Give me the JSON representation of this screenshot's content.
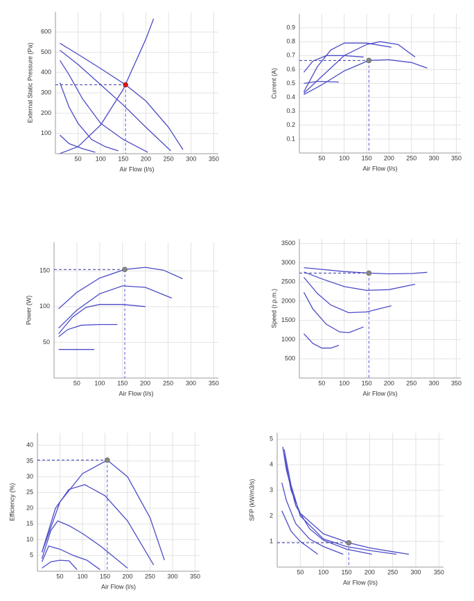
{
  "chart_data": [
    {
      "type": "line",
      "xlabel": "Air Flow (l/s)",
      "ylabel": "External Static Pressure (Pa)",
      "xlim": [
        0,
        360
      ],
      "ylim": [
        0,
        700
      ],
      "xticks": [
        50,
        100,
        150,
        200,
        250,
        300,
        350
      ],
      "yticks": [
        100,
        200,
        300,
        400,
        500,
        600
      ],
      "grid": true,
      "series": [
        {
          "color": "#4b4bc8",
          "x": [
            10,
            50,
            100,
            150,
            200,
            217
          ],
          "values": [
            1,
            35,
            142,
            318,
            566,
            666
          ]
        },
        {
          "color": "#4b4bc8",
          "x": [
            10,
            50,
            100,
            155,
            200,
            250,
            282
          ],
          "values": [
            545,
            490,
            420,
            340,
            260,
            130,
            20
          ]
        },
        {
          "color": "#4b4bc8",
          "x": [
            10,
            50,
            100,
            150,
            200,
            255
          ],
          "values": [
            510,
            440,
            340,
            240,
            130,
            14
          ]
        },
        {
          "color": "#4b4bc8",
          "x": [
            10,
            30,
            60,
            100,
            150,
            204
          ],
          "values": [
            460,
            390,
            270,
            150,
            70,
            7
          ]
        },
        {
          "color": "#4b4bc8",
          "x": [
            10,
            30,
            50,
            80,
            110,
            139
          ],
          "values": [
            350,
            230,
            150,
            70,
            35,
            14
          ]
        },
        {
          "color": "#4b4bc8",
          "x": [
            10,
            30,
            60,
            88
          ],
          "values": [
            92,
            50,
            25,
            7
          ]
        }
      ],
      "operating_point": {
        "x": 155,
        "y": 340,
        "color": "#dd1111"
      }
    },
    {
      "type": "line",
      "xlabel": "Air Flow (l/s)",
      "ylabel": "Current (A)",
      "xlim": [
        0,
        360
      ],
      "ylim": [
        0,
        1.0
      ],
      "xticks": [
        50,
        100,
        150,
        200,
        250,
        300,
        350
      ],
      "yticks": [
        0.1,
        0.2,
        0.3,
        0.4,
        0.5,
        0.6,
        0.7,
        0.8,
        0.9
      ],
      "grid": true,
      "series": [
        {
          "color": "#4b4bc8",
          "x": [
            10,
            40,
            88
          ],
          "values": [
            0.5,
            0.515,
            0.51
          ]
        },
        {
          "color": "#4b4bc8",
          "x": [
            10,
            30,
            60,
            100,
            143
          ],
          "values": [
            0.58,
            0.66,
            0.7,
            0.7,
            0.69
          ]
        },
        {
          "color": "#4b4bc8",
          "x": [
            10,
            40,
            70,
            100,
            150,
            205
          ],
          "values": [
            0.44,
            0.62,
            0.74,
            0.79,
            0.79,
            0.76
          ]
        },
        {
          "color": "#4b4bc8",
          "x": [
            10,
            50,
            100,
            150,
            180,
            220,
            258
          ],
          "values": [
            0.43,
            0.55,
            0.7,
            0.78,
            0.8,
            0.78,
            0.69
          ]
        },
        {
          "color": "#4b4bc8",
          "x": [
            10,
            50,
            100,
            155,
            200,
            250,
            285
          ],
          "values": [
            0.42,
            0.49,
            0.59,
            0.665,
            0.67,
            0.65,
            0.61
          ]
        }
      ],
      "operating_point": {
        "x": 155,
        "y": 0.665,
        "color": "#888888"
      }
    },
    {
      "type": "line",
      "xlabel": "Air Flow (l/s)",
      "ylabel": "Power (W)",
      "xlim": [
        0,
        360
      ],
      "ylim": [
        0,
        190
      ],
      "xticks": [
        50,
        100,
        150,
        200,
        250,
        300,
        350
      ],
      "yticks": [
        50,
        100,
        150
      ],
      "grid": true,
      "series": [
        {
          "color": "#4b4bc8",
          "x": [
            10,
            50,
            100,
            155,
            200,
            240,
            282
          ],
          "values": [
            97,
            120,
            140,
            152,
            155,
            151,
            139
          ]
        },
        {
          "color": "#4b4bc8",
          "x": [
            10,
            50,
            100,
            150,
            200,
            258
          ],
          "values": [
            70,
            95,
            118,
            129,
            127,
            112
          ]
        },
        {
          "color": "#4b4bc8",
          "x": [
            10,
            40,
            70,
            100,
            150,
            200
          ],
          "values": [
            62,
            85,
            99,
            103,
            103,
            100
          ]
        },
        {
          "color": "#4b4bc8",
          "x": [
            10,
            30,
            60,
            100,
            139
          ],
          "values": [
            58,
            68,
            74,
            75,
            75
          ]
        },
        {
          "color": "#4b4bc8",
          "x": [
            10,
            50,
            88
          ],
          "values": [
            40,
            40,
            40
          ]
        }
      ],
      "operating_point": {
        "x": 155,
        "y": 152,
        "color": "#888888"
      }
    },
    {
      "type": "line",
      "xlabel": "Air Flow (l/s)",
      "ylabel": "Speed (r.p.m.)",
      "xlim": [
        0,
        360
      ],
      "ylim": [
        0,
        3620
      ],
      "xticks": [
        50,
        100,
        150,
        200,
        250,
        300,
        350
      ],
      "yticks": [
        500,
        1000,
        1500,
        2000,
        2500,
        3000,
        3500
      ],
      "grid": true,
      "series": [
        {
          "color": "#4b4bc8",
          "x": [
            10,
            100,
            155,
            200,
            250,
            285
          ],
          "values": [
            2870,
            2770,
            2730,
            2710,
            2720,
            2750
          ]
        },
        {
          "color": "#4b4bc8",
          "x": [
            10,
            50,
            100,
            150,
            200,
            258
          ],
          "values": [
            2760,
            2580,
            2380,
            2280,
            2300,
            2440
          ]
        },
        {
          "color": "#4b4bc8",
          "x": [
            10,
            40,
            70,
            110,
            150,
            205
          ],
          "values": [
            2620,
            2200,
            1900,
            1700,
            1720,
            1880
          ]
        },
        {
          "color": "#4b4bc8",
          "x": [
            10,
            30,
            60,
            90,
            110,
            143
          ],
          "values": [
            2230,
            1800,
            1400,
            1200,
            1180,
            1330
          ]
        },
        {
          "color": "#4b4bc8",
          "x": [
            10,
            30,
            50,
            70,
            88
          ],
          "values": [
            1150,
            900,
            780,
            780,
            850
          ]
        }
      ],
      "operating_point": {
        "x": 155,
        "y": 2730,
        "color": "#888888"
      }
    },
    {
      "type": "line",
      "xlabel": "Air Flow (l/s)",
      "ylabel": "Efficiency (%)",
      "xlim": [
        0,
        360
      ],
      "ylim": [
        0,
        44
      ],
      "xticks": [
        50,
        100,
        150,
        200,
        250,
        300,
        350
      ],
      "yticks": [
        5,
        10,
        15,
        20,
        25,
        30,
        35,
        40
      ],
      "grid": true,
      "series": [
        {
          "color": "#4b4bc8",
          "x": [
            10,
            50,
            100,
            155,
            200,
            250,
            282
          ],
          "values": [
            6,
            22,
            31,
            35.3,
            30,
            17,
            3.5
          ]
        },
        {
          "color": "#4b4bc8",
          "x": [
            10,
            40,
            70,
            105,
            150,
            200,
            258
          ],
          "values": [
            6,
            20,
            26,
            27.5,
            24,
            16,
            2
          ]
        },
        {
          "color": "#4b4bc8",
          "x": [
            10,
            30,
            45,
            70,
            100,
            140,
            200
          ],
          "values": [
            4,
            13,
            16,
            14.5,
            12,
            8,
            1
          ]
        },
        {
          "color": "#4b4bc8",
          "x": [
            10,
            25,
            50,
            80,
            110,
            139
          ],
          "values": [
            3,
            8,
            7,
            5,
            3.5,
            0.5
          ]
        },
        {
          "color": "#4b4bc8",
          "x": [
            10,
            30,
            50,
            70,
            88
          ],
          "values": [
            1,
            3,
            3.5,
            3.3,
            0.5
          ]
        }
      ],
      "operating_point": {
        "x": 155,
        "y": 35.3,
        "color": "#888888"
      }
    },
    {
      "type": "line",
      "xlabel": "Air Flow (l/s)",
      "ylabel": "SFP (kW/m3/s)",
      "xlim": [
        0,
        360
      ],
      "ylim": [
        0,
        5.25
      ],
      "xticks": [
        50,
        100,
        150,
        200,
        250,
        300,
        350
      ],
      "yticks": [
        1,
        2,
        3,
        4,
        5
      ],
      "grid": true,
      "series": [
        {
          "color": "#4b4bc8",
          "x": [
            15,
            30,
            50,
            100,
            155,
            200,
            250,
            285
          ],
          "values": [
            4.4,
            3.0,
            2.1,
            1.3,
            0.95,
            0.75,
            0.6,
            0.5
          ]
        },
        {
          "color": "#4b4bc8",
          "x": [
            15,
            30,
            50,
            100,
            150,
            200,
            258
          ],
          "values": [
            4.6,
            3.2,
            2.0,
            1.1,
            0.8,
            0.65,
            0.5
          ]
        },
        {
          "color": "#4b4bc8",
          "x": [
            12,
            20,
            40,
            70,
            100,
            150,
            205
          ],
          "values": [
            4.7,
            3.8,
            2.4,
            1.5,
            1.05,
            0.7,
            0.5
          ]
        },
        {
          "color": "#4b4bc8",
          "x": [
            10,
            20,
            40,
            70,
            100,
            143
          ],
          "values": [
            3.3,
            2.6,
            1.7,
            1.1,
            0.8,
            0.5
          ]
        },
        {
          "color": "#4b4bc8",
          "x": [
            10,
            30,
            50,
            88
          ],
          "values": [
            2.2,
            1.4,
            1.0,
            0.5
          ]
        }
      ],
      "operating_point": {
        "x": 155,
        "y": 0.95,
        "color": "#888888"
      }
    }
  ]
}
